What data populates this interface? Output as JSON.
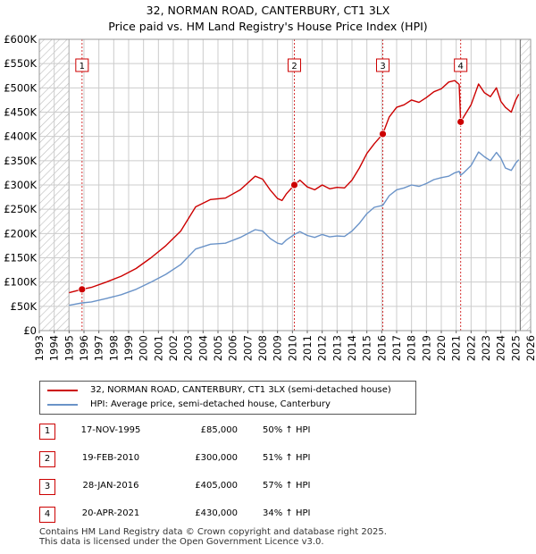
{
  "title_line1": "32, NORMAN ROAD, CANTERBURY, CT1 3LX",
  "title_line2": "Price paid vs. HM Land Registry's House Price Index (HPI)",
  "colors": {
    "property": "#cc0000",
    "hpi": "#6a93c8",
    "marker_border": "#cc0000",
    "grid": "#cccccc"
  },
  "legend": {
    "property_label": "32, NORMAN ROAD, CANTERBURY, CT1 3LX (semi-detached house)",
    "hpi_label": "HPI: Average price, semi-detached house, Canterbury"
  },
  "transactions": [
    {
      "num": "1",
      "date": "17-NOV-1995",
      "price": "£85,000",
      "hpi_change": "50% ↑ HPI"
    },
    {
      "num": "2",
      "date": "19-FEB-2010",
      "price": "£300,000",
      "hpi_change": "51% ↑ HPI"
    },
    {
      "num": "3",
      "date": "28-JAN-2016",
      "price": "£405,000",
      "hpi_change": "57% ↑ HPI"
    },
    {
      "num": "4",
      "date": "20-APR-2021",
      "price": "£430,000",
      "hpi_change": "34% ↑ HPI"
    }
  ],
  "footer_line1": "Contains HM Land Registry data © Crown copyright and database right 2025.",
  "footer_line2": "This data is licensed under the Open Government Licence v3.0.",
  "chart_data": {
    "type": "line",
    "title": "Price paid vs. HM Land Registry's House Price Index (HPI)",
    "xlabel": "",
    "ylabel": "",
    "xlim": [
      1993,
      2026
    ],
    "ylim": [
      0,
      600000
    ],
    "x_ticks": [
      1993,
      1994,
      1995,
      1996,
      1997,
      1998,
      1999,
      2000,
      2001,
      2002,
      2003,
      2004,
      2005,
      2006,
      2007,
      2008,
      2009,
      2010,
      2011,
      2012,
      2013,
      2014,
      2015,
      2016,
      2017,
      2018,
      2019,
      2020,
      2021,
      2022,
      2023,
      2024,
      2025,
      2026
    ],
    "y_ticks": [
      0,
      50000,
      100000,
      150000,
      200000,
      250000,
      300000,
      350000,
      400000,
      450000,
      500000,
      550000,
      600000
    ],
    "y_tick_labels": [
      "£0",
      "£50K",
      "£100K",
      "£150K",
      "£200K",
      "£250K",
      "£300K",
      "£350K",
      "£400K",
      "£450K",
      "£500K",
      "£550K",
      "£600K"
    ],
    "hatched_ranges": [
      [
        1993,
        1995.0
      ],
      [
        2025.3,
        2026
      ]
    ],
    "series": [
      {
        "name": "32, NORMAN ROAD, CANTERBURY, CT1 3LX (semi-detached house)",
        "x": [
          1995.0,
          1995.87,
          1996.5,
          1997.5,
          1998.5,
          1999.5,
          2000.5,
          2001.5,
          2002.5,
          2003.5,
          2004.5,
          2005.5,
          2006.5,
          2007.5,
          2008.0,
          2008.5,
          2009.0,
          2009.3,
          2009.6,
          2010.13,
          2010.5,
          2011.0,
          2011.5,
          2012.0,
          2012.5,
          2013.0,
          2013.5,
          2014.0,
          2014.5,
          2015.0,
          2015.5,
          2016.07,
          2016.5,
          2017.0,
          2017.5,
          2018.0,
          2018.5,
          2019.0,
          2019.5,
          2020.0,
          2020.5,
          2020.9,
          2021.2,
          2021.3,
          2021.5,
          2022.0,
          2022.5,
          2022.9,
          2023.3,
          2023.7,
          2024.0,
          2024.3,
          2024.7,
          2025.0,
          2025.2
        ],
        "values": [
          78000,
          85000,
          89000,
          100000,
          112000,
          128000,
          150000,
          175000,
          205000,
          255000,
          270000,
          273000,
          290000,
          318000,
          312000,
          290000,
          272000,
          268000,
          282000,
          300000,
          310000,
          296000,
          290000,
          300000,
          292000,
          295000,
          294000,
          310000,
          335000,
          365000,
          385000,
          405000,
          440000,
          460000,
          465000,
          475000,
          470000,
          480000,
          492000,
          498000,
          512000,
          515000,
          507000,
          430000,
          440000,
          465000,
          508000,
          490000,
          482000,
          500000,
          472000,
          460000,
          450000,
          475000,
          487000
        ]
      },
      {
        "name": "HPI: Average price, semi-detached house, Canterbury",
        "x": [
          1995.0,
          1995.87,
          1996.5,
          1997.5,
          1998.5,
          1999.5,
          2000.5,
          2001.5,
          2002.5,
          2003.5,
          2004.5,
          2005.5,
          2006.5,
          2007.5,
          2008.0,
          2008.5,
          2009.0,
          2009.3,
          2009.6,
          2010.13,
          2010.5,
          2011.0,
          2011.5,
          2012.0,
          2012.5,
          2013.0,
          2013.5,
          2014.0,
          2014.5,
          2015.0,
          2015.5,
          2016.07,
          2016.5,
          2017.0,
          2017.5,
          2018.0,
          2018.5,
          2019.0,
          2019.5,
          2020.0,
          2020.5,
          2020.9,
          2021.2,
          2021.3,
          2021.5,
          2022.0,
          2022.5,
          2022.9,
          2023.3,
          2023.7,
          2024.0,
          2024.3,
          2024.7,
          2025.0,
          2025.2
        ],
        "values": [
          52000,
          57000,
          59000,
          66000,
          74000,
          85000,
          100000,
          116000,
          136000,
          168000,
          178000,
          180000,
          192000,
          208000,
          205000,
          190000,
          180000,
          178000,
          187000,
          198000,
          204000,
          196000,
          192000,
          198000,
          193000,
          195000,
          194000,
          205000,
          221000,
          241000,
          254000,
          258000,
          278000,
          290000,
          294000,
          300000,
          297000,
          303000,
          311000,
          315000,
          318000,
          325000,
          328000,
          320000,
          325000,
          340000,
          368000,
          358000,
          350000,
          367000,
          355000,
          335000,
          330000,
          345000,
          352000
        ]
      }
    ],
    "sales": [
      {
        "label": "1",
        "x": 1995.87,
        "value": 85000
      },
      {
        "label": "2",
        "x": 2010.13,
        "value": 300000
      },
      {
        "label": "3",
        "x": 2016.07,
        "value": 405000
      },
      {
        "label": "4",
        "x": 2021.3,
        "value": 430000
      }
    ],
    "legend_position": "below"
  }
}
